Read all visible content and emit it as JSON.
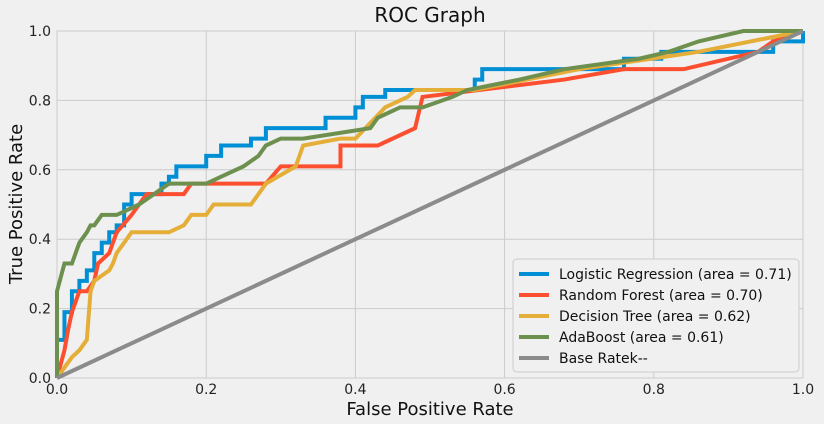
{
  "chart_data": {
    "type": "line",
    "title": "ROC Graph",
    "xlabel": "False Positive Rate",
    "ylabel": "True Positive Rate",
    "xlim": [
      0.0,
      1.0
    ],
    "ylim": [
      0.0,
      1.0
    ],
    "xticks": [
      "0.0",
      "0.2",
      "0.4",
      "0.6",
      "0.8",
      "1.0"
    ],
    "yticks": [
      "0.0",
      "0.2",
      "0.4",
      "0.6",
      "0.8",
      "1.0"
    ],
    "grid": true,
    "legend_position": "bottom-right",
    "series": [
      {
        "name": "Logistic Regression (area = 0.71)",
        "color": "#008fd5",
        "x": [
          0.0,
          0.0,
          0.01,
          0.01,
          0.02,
          0.02,
          0.03,
          0.03,
          0.04,
          0.04,
          0.05,
          0.05,
          0.06,
          0.06,
          0.07,
          0.07,
          0.08,
          0.08,
          0.09,
          0.09,
          0.1,
          0.1,
          0.14,
          0.14,
          0.15,
          0.15,
          0.16,
          0.16,
          0.2,
          0.2,
          0.22,
          0.22,
          0.26,
          0.26,
          0.28,
          0.28,
          0.36,
          0.36,
          0.4,
          0.4,
          0.41,
          0.41,
          0.44,
          0.44,
          0.56,
          0.56,
          0.57,
          0.57,
          0.71,
          0.71,
          0.76,
          0.76,
          0.81,
          0.81,
          0.9,
          0.9,
          0.96,
          0.96,
          1.0,
          1.0
        ],
        "y": [
          0.0,
          0.11,
          0.11,
          0.19,
          0.19,
          0.25,
          0.25,
          0.28,
          0.28,
          0.31,
          0.31,
          0.36,
          0.36,
          0.39,
          0.39,
          0.42,
          0.42,
          0.44,
          0.44,
          0.5,
          0.5,
          0.53,
          0.53,
          0.56,
          0.56,
          0.58,
          0.58,
          0.61,
          0.61,
          0.64,
          0.64,
          0.67,
          0.67,
          0.69,
          0.69,
          0.72,
          0.72,
          0.75,
          0.75,
          0.78,
          0.78,
          0.81,
          0.81,
          0.83,
          0.83,
          0.86,
          0.86,
          0.89,
          0.89,
          0.89,
          0.89,
          0.92,
          0.92,
          0.94,
          0.94,
          0.94,
          0.94,
          0.97,
          0.97,
          1.0
        ]
      },
      {
        "name": "Random Forest (area = 0.70)",
        "color": "#fc4f30",
        "x": [
          0.0,
          0.01,
          0.015,
          0.02,
          0.025,
          0.03,
          0.04,
          0.05,
          0.055,
          0.07,
          0.08,
          0.1,
          0.12,
          0.17,
          0.18,
          0.28,
          0.3,
          0.38,
          0.38,
          0.43,
          0.48,
          0.49,
          0.68,
          0.76,
          0.84,
          0.94,
          0.96,
          1.0
        ],
        "y": [
          0.0,
          0.08,
          0.14,
          0.19,
          0.22,
          0.25,
          0.25,
          0.28,
          0.33,
          0.36,
          0.42,
          0.47,
          0.53,
          0.53,
          0.56,
          0.56,
          0.61,
          0.61,
          0.67,
          0.67,
          0.72,
          0.81,
          0.86,
          0.89,
          0.89,
          0.94,
          0.97,
          1.0
        ]
      },
      {
        "name": "Decision Tree (area = 0.62)",
        "color": "#e5ae38",
        "x": [
          0.0,
          0.01,
          0.02,
          0.03,
          0.04,
          0.045,
          0.05,
          0.07,
          0.075,
          0.08,
          0.1,
          0.13,
          0.15,
          0.17,
          0.18,
          0.2,
          0.21,
          0.22,
          0.26,
          0.28,
          0.32,
          0.33,
          0.38,
          0.4,
          0.44,
          0.47,
          0.48,
          0.56,
          0.7,
          0.86,
          1.0
        ],
        "y": [
          0.0,
          0.03,
          0.06,
          0.08,
          0.11,
          0.25,
          0.28,
          0.31,
          0.33,
          0.36,
          0.42,
          0.42,
          0.42,
          0.44,
          0.47,
          0.47,
          0.5,
          0.5,
          0.5,
          0.56,
          0.61,
          0.67,
          0.69,
          0.69,
          0.78,
          0.81,
          0.83,
          0.83,
          0.89,
          0.94,
          1.0
        ]
      },
      {
        "name": "AdaBoost (area = 0.61)",
        "color": "#6d904f",
        "x": [
          0.0,
          0.0,
          0.01,
          0.02,
          0.025,
          0.03,
          0.04,
          0.045,
          0.05,
          0.06,
          0.07,
          0.08,
          0.11,
          0.13,
          0.15,
          0.2,
          0.22,
          0.25,
          0.27,
          0.28,
          0.3,
          0.33,
          0.42,
          0.43,
          0.46,
          0.49,
          0.53,
          0.55,
          0.62,
          0.68,
          0.78,
          0.82,
          0.86,
          0.92,
          0.96,
          1.0
        ],
        "y": [
          0.0,
          0.25,
          0.33,
          0.33,
          0.36,
          0.39,
          0.42,
          0.44,
          0.44,
          0.47,
          0.47,
          0.47,
          0.5,
          0.53,
          0.56,
          0.56,
          0.58,
          0.61,
          0.64,
          0.67,
          0.69,
          0.69,
          0.72,
          0.75,
          0.78,
          0.78,
          0.81,
          0.83,
          0.86,
          0.89,
          0.92,
          0.94,
          0.97,
          1.0,
          1.0,
          1.0
        ]
      },
      {
        "name": "Base Ratek--",
        "color": "#8b8b8b",
        "x": [
          0.0,
          1.0
        ],
        "y": [
          0.0,
          1.0
        ]
      }
    ]
  }
}
